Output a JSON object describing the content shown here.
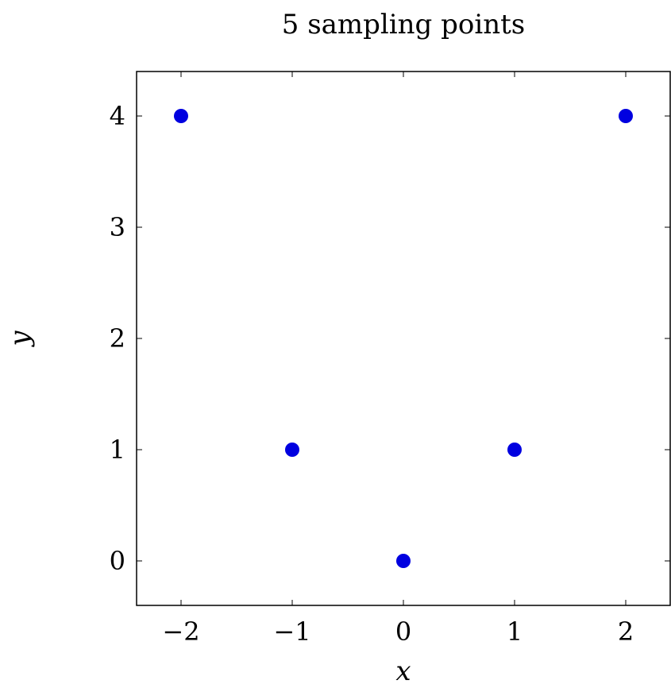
{
  "chart_data": {
    "type": "scatter",
    "title": "5 sampling points",
    "xlabel": "x",
    "ylabel": "y",
    "x": [
      -2,
      -1,
      0,
      1,
      2
    ],
    "y": [
      4,
      1,
      0,
      1,
      4
    ],
    "xlim": [
      -2.4,
      2.4
    ],
    "ylim": [
      -0.4,
      4.4
    ],
    "xticks": [
      -2,
      -1,
      0,
      1,
      2
    ],
    "xtick_labels": [
      "−2",
      "−1",
      "0",
      "1",
      "2"
    ],
    "yticks": [
      0,
      1,
      2,
      3,
      4
    ],
    "ytick_labels": [
      "0",
      "1",
      "2",
      "3",
      "4"
    ],
    "grid": false,
    "marker_color": "#0000e0"
  }
}
